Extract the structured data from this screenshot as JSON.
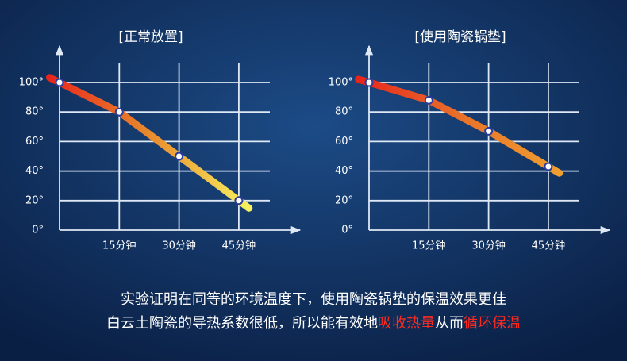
{
  "chart_data": [
    {
      "type": "line",
      "title": "[正常放置]",
      "categories": [
        null,
        "15分钟",
        "30分钟",
        "45分钟"
      ],
      "values": [
        100,
        80,
        50,
        20
      ],
      "line_colors": [
        "#e8241c",
        "#e98a2c",
        "#f8f260"
      ],
      "ylim": [
        0,
        100
      ],
      "yticks": [
        {
          "value": 0,
          "label": "0°"
        },
        {
          "value": 20,
          "label": "20°"
        },
        {
          "value": 40,
          "label": "40°"
        },
        {
          "value": 60,
          "label": "60°"
        },
        {
          "value": 80,
          "label": "80°"
        },
        {
          "value": 100,
          "label": "100°"
        }
      ],
      "grid": true
    },
    {
      "type": "line",
      "title": "[使用陶瓷锅垫]",
      "categories": [
        null,
        "15分钟",
        "30分钟",
        "45分钟"
      ],
      "values": [
        100,
        88,
        67,
        43
      ],
      "line_colors": [
        "#e8241c",
        "#e8702a",
        "#f0a030"
      ],
      "ylim": [
        0,
        100
      ],
      "yticks": [
        {
          "value": 0,
          "label": "0°"
        },
        {
          "value": 20,
          "label": "20°"
        },
        {
          "value": 40,
          "label": "40°"
        },
        {
          "value": 60,
          "label": "60°"
        },
        {
          "value": 80,
          "label": "80°"
        },
        {
          "value": 100,
          "label": "100°"
        }
      ],
      "grid": true
    }
  ],
  "caption": {
    "line1": "实验证明在同等的环境温度下，使用陶瓷锅垫的保温效果更佳",
    "line2": [
      {
        "text": "白云土陶瓷的导热系数很低，所以能有效地",
        "highlight": false
      },
      {
        "text": "吸收热量",
        "highlight": true
      },
      {
        "text": "从而",
        "highlight": false
      },
      {
        "text": "循环保温",
        "highlight": true
      }
    ],
    "highlight_color": "#ff2a1f"
  }
}
